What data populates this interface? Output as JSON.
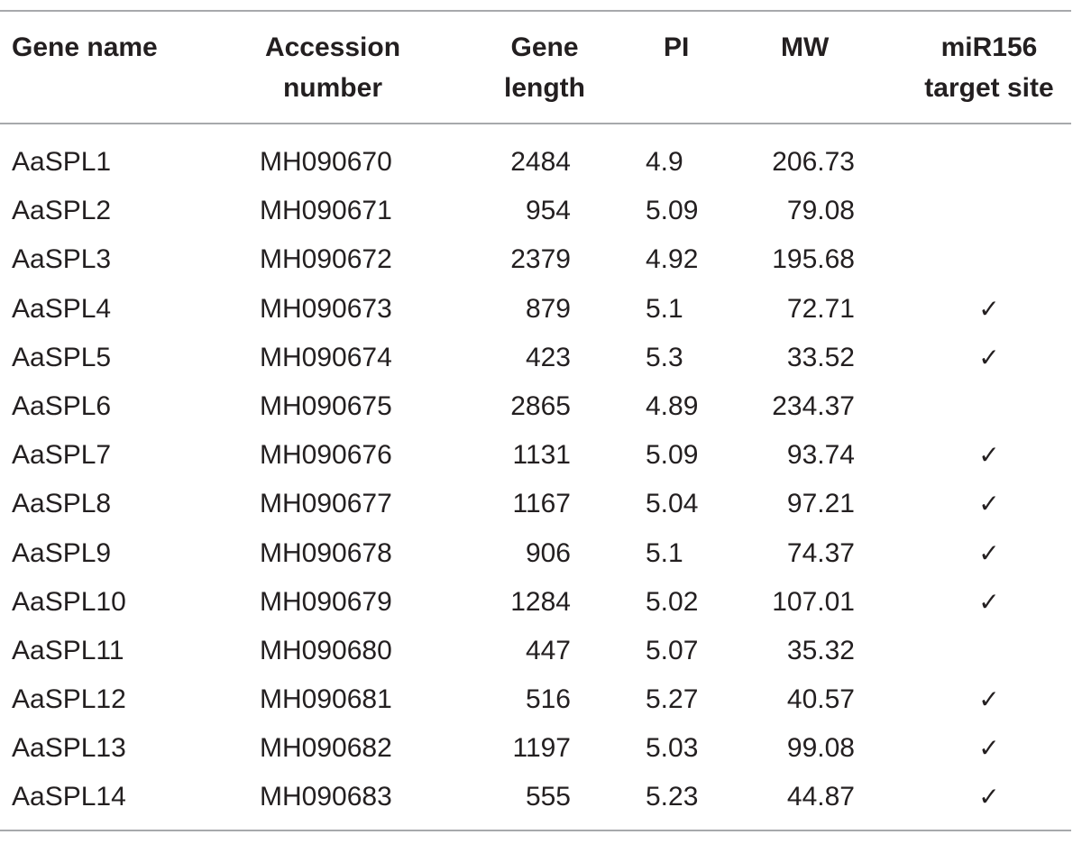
{
  "table": {
    "headers": {
      "gene_name": [
        "Gene name"
      ],
      "accession": [
        "Accession",
        "number"
      ],
      "gene_length": [
        "Gene",
        "length"
      ],
      "pi": [
        "PI"
      ],
      "mw": [
        "MW"
      ],
      "mir156": [
        "miR156",
        "target site"
      ]
    },
    "check_mark": "✓",
    "rows": [
      {
        "gene": "AaSPL1",
        "accession": "MH090670",
        "length": "2484",
        "pi": "4.9",
        "mw": "206.73",
        "target": ""
      },
      {
        "gene": "AaSPL2",
        "accession": "MH090671",
        "length": "954",
        "pi": "5.09",
        "mw": "79.08",
        "target": ""
      },
      {
        "gene": "AaSPL3",
        "accession": "MH090672",
        "length": "2379",
        "pi": "4.92",
        "mw": "195.68",
        "target": ""
      },
      {
        "gene": "AaSPL4",
        "accession": "MH090673",
        "length": "879",
        "pi": "5.1",
        "mw": "72.71",
        "target": "✓"
      },
      {
        "gene": "AaSPL5",
        "accession": "MH090674",
        "length": "423",
        "pi": "5.3",
        "mw": "33.52",
        "target": "✓"
      },
      {
        "gene": "AaSPL6",
        "accession": "MH090675",
        "length": "2865",
        "pi": "4.89",
        "mw": "234.37",
        "target": ""
      },
      {
        "gene": "AaSPL7",
        "accession": "MH090676",
        "length": "1131",
        "pi": "5.09",
        "mw": "93.74",
        "target": "✓"
      },
      {
        "gene": "AaSPL8",
        "accession": "MH090677",
        "length": "1167",
        "pi": "5.04",
        "mw": "97.21",
        "target": "✓"
      },
      {
        "gene": "AaSPL9",
        "accession": "MH090678",
        "length": "906",
        "pi": "5.1",
        "mw": "74.37",
        "target": "✓"
      },
      {
        "gene": "AaSPL10",
        "accession": "MH090679",
        "length": "1284",
        "pi": "5.02",
        "mw": "107.01",
        "target": "✓"
      },
      {
        "gene": "AaSPL11",
        "accession": "MH090680",
        "length": "447",
        "pi": "5.07",
        "mw": "35.32",
        "target": ""
      },
      {
        "gene": "AaSPL12",
        "accession": "MH090681",
        "length": "516",
        "pi": "5.27",
        "mw": "40.57",
        "target": "✓"
      },
      {
        "gene": "AaSPL13",
        "accession": "MH090682",
        "length": "1197",
        "pi": "5.03",
        "mw": "99.08",
        "target": "✓"
      },
      {
        "gene": "AaSPL14",
        "accession": "MH090683",
        "length": "555",
        "pi": "5.23",
        "mw": "44.87",
        "target": "✓"
      }
    ]
  }
}
